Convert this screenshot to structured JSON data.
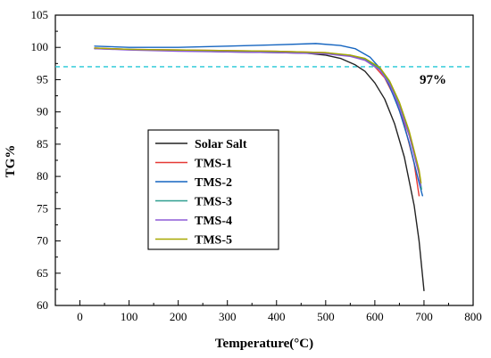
{
  "chart_data": {
    "type": "line",
    "title": "",
    "xlabel": "Temperature(°C)",
    "ylabel": "TG%",
    "xlim": [
      -50,
      800
    ],
    "ylim": [
      60,
      105
    ],
    "xticks": [
      0,
      100,
      200,
      300,
      400,
      500,
      600,
      700,
      800
    ],
    "yticks": [
      60,
      65,
      70,
      75,
      80,
      85,
      90,
      95,
      100,
      105
    ],
    "grid": false,
    "legend_position": "center-left",
    "reference_line": {
      "y": 97,
      "label": "97%",
      "color": "#22C7D6",
      "style": "dashed"
    },
    "series": [
      {
        "name": "Solar Salt",
        "color": "#222222",
        "x": [
          30,
          100,
          200,
          300,
          400,
          460,
          500,
          530,
          560,
          580,
          600,
          620,
          640,
          660,
          680,
          690,
          700
        ],
        "y": [
          99.8,
          99.7,
          99.5,
          99.3,
          99.2,
          99.1,
          98.8,
          98.3,
          97.3,
          96.3,
          94.5,
          92.0,
          88.2,
          83.0,
          75.5,
          70.0,
          62.3
        ]
      },
      {
        "name": "TMS-1",
        "color": "#E53935",
        "x": [
          30,
          100,
          200,
          300,
          400,
          500,
          550,
          580,
          600,
          620,
          640,
          660,
          680,
          690
        ],
        "y": [
          99.9,
          99.7,
          99.6,
          99.5,
          99.4,
          99.2,
          98.7,
          98.0,
          97.0,
          95.3,
          92.3,
          88.0,
          82.0,
          77.0
        ]
      },
      {
        "name": "TMS-2",
        "color": "#1565C0",
        "x": [
          30,
          100,
          200,
          300,
          400,
          480,
          530,
          560,
          590,
          610,
          630,
          650,
          670,
          690,
          697
        ],
        "y": [
          100.2,
          100.0,
          100.0,
          100.2,
          100.4,
          100.6,
          100.3,
          99.8,
          98.5,
          96.8,
          94.0,
          90.2,
          85.2,
          79.0,
          77.0
        ]
      },
      {
        "name": "TMS-3",
        "color": "#2E9E8F",
        "x": [
          30,
          100,
          200,
          300,
          400,
          500,
          550,
          580,
          610,
          630,
          650,
          670,
          690,
          695
        ],
        "y": [
          99.8,
          99.7,
          99.5,
          99.4,
          99.3,
          99.1,
          98.8,
          98.2,
          96.7,
          94.5,
          91.0,
          86.5,
          80.5,
          78.0
        ]
      },
      {
        "name": "TMS-4",
        "color": "#8E5BD6",
        "x": [
          30,
          100,
          200,
          300,
          400,
          500,
          550,
          580,
          610,
          630,
          650,
          670,
          690,
          693
        ],
        "y": [
          99.8,
          99.6,
          99.4,
          99.3,
          99.2,
          99.0,
          98.6,
          98.0,
          96.5,
          94.3,
          90.8,
          86.3,
          80.3,
          78.5
        ]
      },
      {
        "name": "TMS-5",
        "color": "#A7A800",
        "x": [
          30,
          100,
          200,
          300,
          400,
          500,
          550,
          580,
          610,
          630,
          650,
          670,
          690,
          694
        ],
        "y": [
          99.9,
          99.7,
          99.6,
          99.5,
          99.4,
          99.2,
          98.8,
          98.3,
          96.9,
          94.8,
          91.5,
          87.0,
          81.0,
          79.0
        ]
      }
    ]
  }
}
